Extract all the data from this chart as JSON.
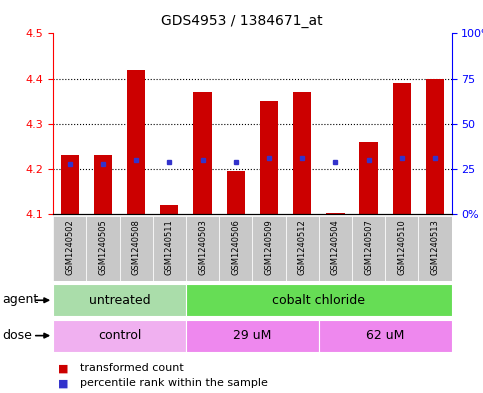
{
  "title": "GDS4953 / 1384671_at",
  "samples": [
    "GSM1240502",
    "GSM1240505",
    "GSM1240508",
    "GSM1240511",
    "GSM1240503",
    "GSM1240506",
    "GSM1240509",
    "GSM1240512",
    "GSM1240504",
    "GSM1240507",
    "GSM1240510",
    "GSM1240513"
  ],
  "bar_values": [
    4.23,
    4.23,
    4.42,
    4.12,
    4.37,
    4.195,
    4.35,
    4.37,
    4.103,
    4.26,
    4.39,
    4.4
  ],
  "blue_values": [
    4.21,
    4.21,
    4.22,
    4.215,
    4.22,
    4.215,
    4.225,
    4.225,
    4.215,
    4.22,
    4.225,
    4.225
  ],
  "bar_bottom": 4.1,
  "ylim": [
    4.1,
    4.5
  ],
  "yticks": [
    4.1,
    4.2,
    4.3,
    4.4,
    4.5
  ],
  "right_yticks": [
    0,
    25,
    50,
    75,
    100
  ],
  "bar_color": "#cc0000",
  "blue_color": "#3333cc",
  "agent_groups": [
    {
      "label": "untreated",
      "start": 0,
      "end": 4,
      "color": "#aaddaa"
    },
    {
      "label": "cobalt chloride",
      "start": 4,
      "end": 12,
      "color": "#66dd55"
    }
  ],
  "dose_groups": [
    {
      "label": "control",
      "start": 0,
      "end": 4,
      "color": "#f0b0f0"
    },
    {
      "label": "29 uM",
      "start": 4,
      "end": 8,
      "color": "#ee88ee"
    },
    {
      "label": "62 uM",
      "start": 8,
      "end": 12,
      "color": "#ee88ee"
    }
  ],
  "legend_red_label": "transformed count",
  "legend_blue_label": "percentile rank within the sample",
  "agent_label": "agent",
  "dose_label": "dose",
  "title_fontsize": 10,
  "axis_tick_fontsize": 8,
  "sample_fontsize": 6,
  "row_fontsize": 9,
  "legend_fontsize": 8,
  "bar_width": 0.55,
  "background_color": "#ffffff",
  "xtick_bg_color": "#c8c8c8",
  "grid_color": "#333333"
}
